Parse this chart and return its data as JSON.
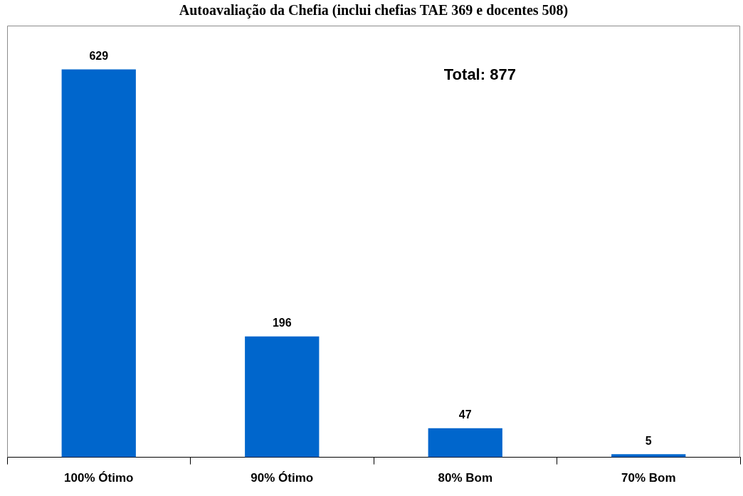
{
  "chart_data": {
    "type": "bar",
    "title": "Autoavaliação da Chefia (inclui chefias TAE 369 e docentes 508)",
    "categories": [
      "100% Ótimo",
      "90% Ótimo",
      "80% Bom",
      "70% Bom"
    ],
    "values": [
      629,
      196,
      47,
      5
    ],
    "color": "#0066cc",
    "data_labels": true,
    "annotations": [
      "Total: 877"
    ]
  }
}
